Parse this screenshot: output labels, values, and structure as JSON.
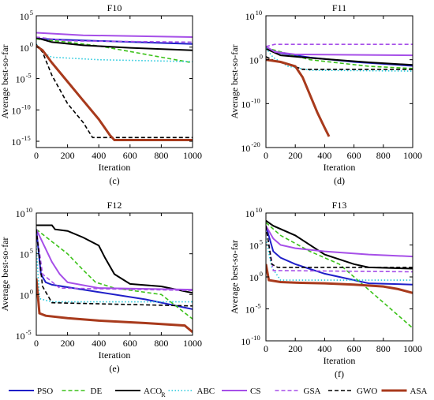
{
  "legend": [
    {
      "name": "PSO",
      "color": "#1f1fc8",
      "dash": "solid",
      "width": 2
    },
    {
      "name": "DE",
      "color": "#3cc21a",
      "dash": "dashed",
      "width": 1.6
    },
    {
      "name": "ACO",
      "sub": "R",
      "color": "#000000",
      "dash": "solid",
      "width": 2
    },
    {
      "name": "ABC",
      "color": "#22c8dc",
      "dash": "dotted",
      "width": 1.6
    },
    {
      "name": "CS",
      "color": "#a64fe8",
      "dash": "solid",
      "width": 2
    },
    {
      "name": "GSA",
      "color": "#a64fe8",
      "dash": "dashed",
      "width": 1.6
    },
    {
      "name": "GWO",
      "color": "#000000",
      "dash": "dashed",
      "width": 1.6
    },
    {
      "name": "ASA",
      "color": "#a83a1c",
      "dash": "solid",
      "width": 3
    }
  ],
  "chart_data": [
    {
      "type": "line",
      "title": "F10",
      "panel_label": "(c)",
      "xlabel": "Iteration",
      "ylabel": "Average best-so-far",
      "xlim": [
        0,
        1000
      ],
      "xticks": [
        0,
        200,
        400,
        600,
        800,
        1000
      ],
      "yscale": "log",
      "ylim_exp": [
        -16,
        5
      ],
      "yticks": [
        {
          "e": 5,
          "b": "10",
          "s": "5"
        },
        {
          "e": 0,
          "b": "10",
          "s": "0"
        },
        {
          "e": -5,
          "b": "10",
          "s": "-5"
        },
        {
          "e": -10,
          "b": "10",
          "s": "-10"
        },
        {
          "e": -15,
          "b": "10",
          "s": "-15"
        }
      ],
      "series": [
        {
          "name": "PSO",
          "x": [
            0,
            50,
            150,
            1000
          ],
          "log10_y": [
            1.4,
            1.3,
            1.2,
            0.5
          ]
        },
        {
          "name": "DE",
          "x": [
            0,
            200,
            400,
            600,
            800,
            1000
          ],
          "log10_y": [
            1.3,
            0.8,
            0.2,
            -0.7,
            -1.6,
            -2.5
          ]
        },
        {
          "name": "ACO",
          "x": [
            0,
            100,
            300,
            600,
            1000
          ],
          "log10_y": [
            1.5,
            0.8,
            0.3,
            -0.1,
            -0.5
          ]
        },
        {
          "name": "ABC",
          "x": [
            0,
            50,
            100,
            400,
            1000
          ],
          "log10_y": [
            0.5,
            -1.0,
            -1.6,
            -2.0,
            -2.3
          ]
        },
        {
          "name": "CS",
          "x": [
            0,
            300,
            1000
          ],
          "log10_y": [
            2.3,
            1.9,
            1.6
          ]
        },
        {
          "name": "GSA",
          "x": [
            0,
            200,
            1000
          ],
          "log10_y": [
            1.6,
            1.0,
            0.8
          ]
        },
        {
          "name": "GWO",
          "x": [
            0,
            40,
            100,
            200,
            300,
            360,
            400,
            1000
          ],
          "log10_y": [
            0.4,
            -0.8,
            -4.5,
            -9.0,
            -12.0,
            -14.4,
            -14.4,
            -14.4
          ]
        },
        {
          "name": "ASA",
          "x": [
            0,
            40,
            100,
            200,
            300,
            400,
            470,
            500,
            1000
          ],
          "log10_y": [
            0.2,
            -0.5,
            -2.5,
            -5.5,
            -8.5,
            -11.5,
            -14.0,
            -14.8,
            -14.8
          ]
        }
      ]
    },
    {
      "type": "line",
      "title": "F11",
      "panel_label": "(d)",
      "xlabel": "Iteration",
      "ylabel": "Average best-so-far",
      "xlim": [
        0,
        1000
      ],
      "xticks": [
        0,
        200,
        400,
        600,
        800,
        1000
      ],
      "yscale": "log",
      "ylim_exp": [
        -20,
        10
      ],
      "yticks": [
        {
          "e": 10,
          "b": "10",
          "s": "10"
        },
        {
          "e": 0,
          "b": "10",
          "s": "0"
        },
        {
          "e": -10,
          "b": "10",
          "s": "-10"
        },
        {
          "e": -20,
          "b": "10",
          "s": "-20"
        }
      ],
      "series": [
        {
          "name": "PSO",
          "x": [
            0,
            100,
            300,
            600,
            1000
          ],
          "log10_y": [
            2.5,
            1.5,
            0.5,
            -0.5,
            -1.4
          ]
        },
        {
          "name": "DE",
          "x": [
            0,
            100,
            300,
            700,
            1000
          ],
          "log10_y": [
            2.7,
            1.8,
            0.0,
            -1.5,
            -2.0
          ]
        },
        {
          "name": "ACO",
          "x": [
            0,
            100,
            300,
            700,
            1000
          ],
          "log10_y": [
            2.5,
            1.0,
            0.4,
            -0.6,
            -1.2
          ]
        },
        {
          "name": "ABC",
          "x": [
            0,
            50,
            150,
            300,
            1000
          ],
          "log10_y": [
            2.6,
            0.5,
            -1.5,
            -2.4,
            -2.6
          ]
        },
        {
          "name": "CS",
          "x": [
            0,
            60,
            200,
            1000
          ],
          "log10_y": [
            3.0,
            1.8,
            1.2,
            1.0
          ]
        },
        {
          "name": "GSA",
          "x": [
            0,
            60,
            1000
          ],
          "log10_y": [
            3.0,
            3.5,
            3.5
          ]
        },
        {
          "name": "GWO",
          "x": [
            0,
            60,
            150,
            250,
            1000
          ],
          "log10_y": [
            0.7,
            -0.3,
            -1.0,
            -2.2,
            -2.2
          ]
        },
        {
          "name": "ASA",
          "x": [
            0,
            100,
            200,
            250,
            300,
            350,
            400,
            430
          ],
          "log10_y": [
            0.0,
            -0.5,
            -1.5,
            -4.0,
            -8.0,
            -12.0,
            -15.5,
            -17.5
          ]
        }
      ]
    },
    {
      "type": "line",
      "title": "F12",
      "panel_label": "(e)",
      "xlabel": "Iteration",
      "ylabel": "Average best-so-far",
      "xlim": [
        0,
        1000
      ],
      "xticks": [
        0,
        200,
        400,
        600,
        800,
        1000
      ],
      "yscale": "log",
      "ylim_exp": [
        -5,
        10
      ],
      "yticks": [
        {
          "e": 10,
          "b": "10",
          "s": "10"
        },
        {
          "e": 5,
          "b": "10",
          "s": "5"
        },
        {
          "e": 0,
          "b": "10",
          "s": "0"
        },
        {
          "e": -5,
          "b": "10",
          "s": "-5"
        }
      ],
      "series": [
        {
          "name": "PSO",
          "x": [
            0,
            30,
            60,
            100,
            400,
            700,
            1000
          ],
          "log10_y": [
            8.0,
            2.5,
            1.5,
            1.2,
            0.3,
            -0.6,
            -1.8
          ]
        },
        {
          "name": "DE",
          "x": [
            0,
            100,
            200,
            300,
            380,
            500,
            800,
            1000
          ],
          "log10_y": [
            8.0,
            6.5,
            5.0,
            3.0,
            1.5,
            0.8,
            0.0,
            -3.0
          ]
        },
        {
          "name": "ACO",
          "x": [
            0,
            100,
            120,
            200,
            300,
            400,
            440,
            500,
            600,
            800,
            1000
          ],
          "log10_y": [
            8.5,
            8.5,
            8.0,
            7.8,
            7.0,
            6.0,
            4.5,
            2.5,
            1.3,
            1.0,
            0.2
          ]
        },
        {
          "name": "ABC",
          "x": [
            0,
            20,
            100,
            1000
          ],
          "log10_y": [
            6.0,
            -0.5,
            -0.9,
            -0.9
          ]
        },
        {
          "name": "CS",
          "x": [
            0,
            50,
            100,
            150,
            200,
            400,
            1000
          ],
          "log10_y": [
            8.0,
            6.0,
            4.0,
            2.5,
            1.5,
            0.8,
            0.6
          ]
        },
        {
          "name": "GSA",
          "x": [
            0,
            40,
            150,
            1000
          ],
          "log10_y": [
            8.0,
            2.5,
            0.8,
            0.5
          ]
        },
        {
          "name": "GWO",
          "x": [
            0,
            40,
            100,
            1000
          ],
          "log10_y": [
            8.0,
            1.0,
            -1.0,
            -1.4
          ]
        },
        {
          "name": "ASA",
          "x": [
            0,
            20,
            60,
            200,
            400,
            700,
            950,
            1000
          ],
          "log10_y": [
            2.0,
            -2.3,
            -2.6,
            -2.9,
            -3.2,
            -3.5,
            -3.8,
            -4.6
          ]
        }
      ]
    },
    {
      "type": "line",
      "title": "F13",
      "panel_label": "(f)",
      "xlabel": "Iteration",
      "ylabel": "Average best-so-far",
      "xlim": [
        0,
        1000
      ],
      "xticks": [
        0,
        200,
        400,
        600,
        800,
        1000
      ],
      "yscale": "log",
      "ylim_exp": [
        -10,
        10
      ],
      "yticks": [
        {
          "e": 10,
          "b": "10",
          "s": "10"
        },
        {
          "e": 5,
          "b": "10",
          "s": "5"
        },
        {
          "e": 0,
          "b": "10",
          "s": "0"
        },
        {
          "e": -5,
          "b": "10",
          "s": "-5"
        },
        {
          "e": -10,
          "b": "10",
          "s": "-10"
        }
      ],
      "series": [
        {
          "name": "PSO",
          "x": [
            0,
            50,
            100,
            200,
            400,
            700,
            1000
          ],
          "log10_y": [
            8.0,
            4.0,
            3.0,
            2.0,
            0.5,
            -1.0,
            -1.2
          ]
        },
        {
          "name": "DE",
          "x": [
            0,
            100,
            300,
            500,
            600,
            800,
            1000
          ],
          "log10_y": [
            8.5,
            6.5,
            4.0,
            2.0,
            0.0,
            -4.0,
            -8.0
          ]
        },
        {
          "name": "ACO",
          "x": [
            0,
            50,
            200,
            400,
            600,
            700,
            1000
          ],
          "log10_y": [
            8.8,
            8.0,
            6.5,
            3.5,
            2.0,
            1.5,
            1.3
          ]
        },
        {
          "name": "ABC",
          "x": [
            0,
            40,
            100,
            1000
          ],
          "log10_y": [
            6.0,
            1.5,
            -0.5,
            -0.5
          ]
        },
        {
          "name": "CS",
          "x": [
            0,
            50,
            100,
            200,
            400,
            700,
            1000
          ],
          "log10_y": [
            8.0,
            6.0,
            5.0,
            4.5,
            4.0,
            3.5,
            3.2
          ]
        },
        {
          "name": "GSA",
          "x": [
            0,
            50,
            1000
          ],
          "log10_y": [
            8.0,
            1.0,
            0.8
          ]
        },
        {
          "name": "GWO",
          "x": [
            0,
            40,
            80,
            1000
          ],
          "log10_y": [
            8.0,
            2.0,
            1.5,
            1.5
          ]
        },
        {
          "name": "ASA",
          "x": [
            0,
            20,
            100,
            200,
            400,
            600,
            800,
            900,
            1000
          ],
          "log10_y": [
            2.0,
            -0.5,
            -0.8,
            -0.9,
            -1.0,
            -1.2,
            -1.5,
            -1.9,
            -2.5
          ]
        }
      ]
    }
  ]
}
